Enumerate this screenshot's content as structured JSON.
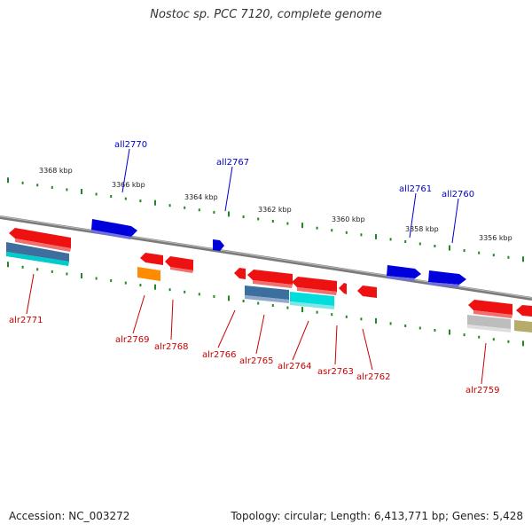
{
  "title": "Nostoc sp. PCC 7120, complete genome",
  "accession": "Accession: NC_003272",
  "summary": "Topology: circular; Length: 6,413,771 bp; Genes: 5,428",
  "colors": {
    "forward": "#ee1111",
    "reverse": "#1111ee",
    "backbone": "#888888",
    "tick": "#228822",
    "label_red": "#cc0000",
    "label_blue": "#0000cc"
  },
  "scale_labels": [
    "3368 kbp",
    "3366 kbp",
    "3364 kbp",
    "3362 kbp",
    "3360 kbp",
    "3358 kbp",
    "3356 kbp"
  ],
  "forward_genes": [
    "alr2771",
    "alr2769",
    "alr2768",
    "alr2766",
    "alr2765",
    "alr2764",
    "asr2763",
    "alr2762",
    "alr2759"
  ],
  "reverse_genes": [
    "all2770",
    "all2767",
    "all2761",
    "all2760"
  ]
}
